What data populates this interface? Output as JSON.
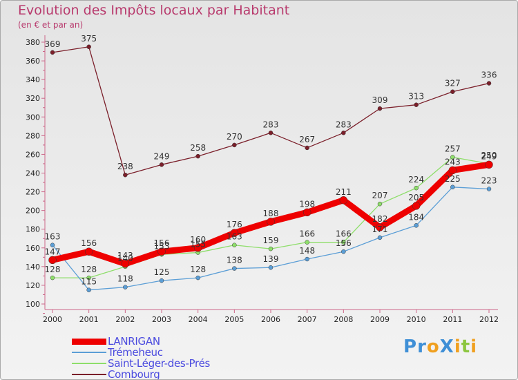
{
  "title": "Evolution des Impôts locaux par Habitant",
  "subtitle": "(en € et par an)",
  "logo": {
    "text": "Proxiti",
    "letters": [
      {
        "ch": "P",
        "color": "#3f8fd6"
      },
      {
        "ch": "r",
        "color": "#3f8fd6"
      },
      {
        "ch": "o",
        "color": "#f0a020"
      },
      {
        "ch": "X",
        "color": "#3f8fd6"
      },
      {
        "ch": "i",
        "color": "#f0a020"
      },
      {
        "ch": "t",
        "color": "#8cc63f"
      },
      {
        "ch": "i",
        "color": "#f0a020"
      }
    ]
  },
  "chart_data": {
    "type": "line",
    "title": "Evolution des Impôts locaux par Habitant",
    "subtitle": "(en € et par an)",
    "x": [
      "2000",
      "2001",
      "2002",
      "2003",
      "2004",
      "2005",
      "2006",
      "2007",
      "2008",
      "2009",
      "2010",
      "2011",
      "2012"
    ],
    "ylim": [
      100,
      380
    ],
    "yticks": [
      100,
      120,
      140,
      160,
      180,
      200,
      220,
      240,
      260,
      280,
      300,
      320,
      340,
      360,
      380
    ],
    "grid": false,
    "legend_position": "bottom-left",
    "series": [
      {
        "name": "Combourg",
        "color": "#7b1f2a",
        "line_width": 1.3,
        "values": [
          369,
          375,
          238,
          249,
          258,
          270,
          283,
          267,
          283,
          309,
          313,
          327,
          336
        ]
      },
      {
        "name": "Saint-Léger-des-Prés",
        "color": "#8ede6a",
        "line_width": 1.3,
        "values": [
          128,
          128,
          140,
          153,
          155,
          163,
          159,
          166,
          166,
          207,
          224,
          257,
          250
        ]
      },
      {
        "name": "Trémeheuc",
        "color": "#5b9ed6",
        "line_width": 1.3,
        "values": [
          163,
          115,
          118,
          125,
          128,
          138,
          139,
          148,
          156,
          171,
          184,
          225,
          223
        ]
      },
      {
        "name": "LANRIGAN",
        "color": "#ee0000",
        "line_width": 9,
        "values": [
          147,
          156,
          143,
          156,
          160,
          176,
          188,
          198,
          211,
          182,
          205,
          243,
          249
        ]
      }
    ]
  }
}
